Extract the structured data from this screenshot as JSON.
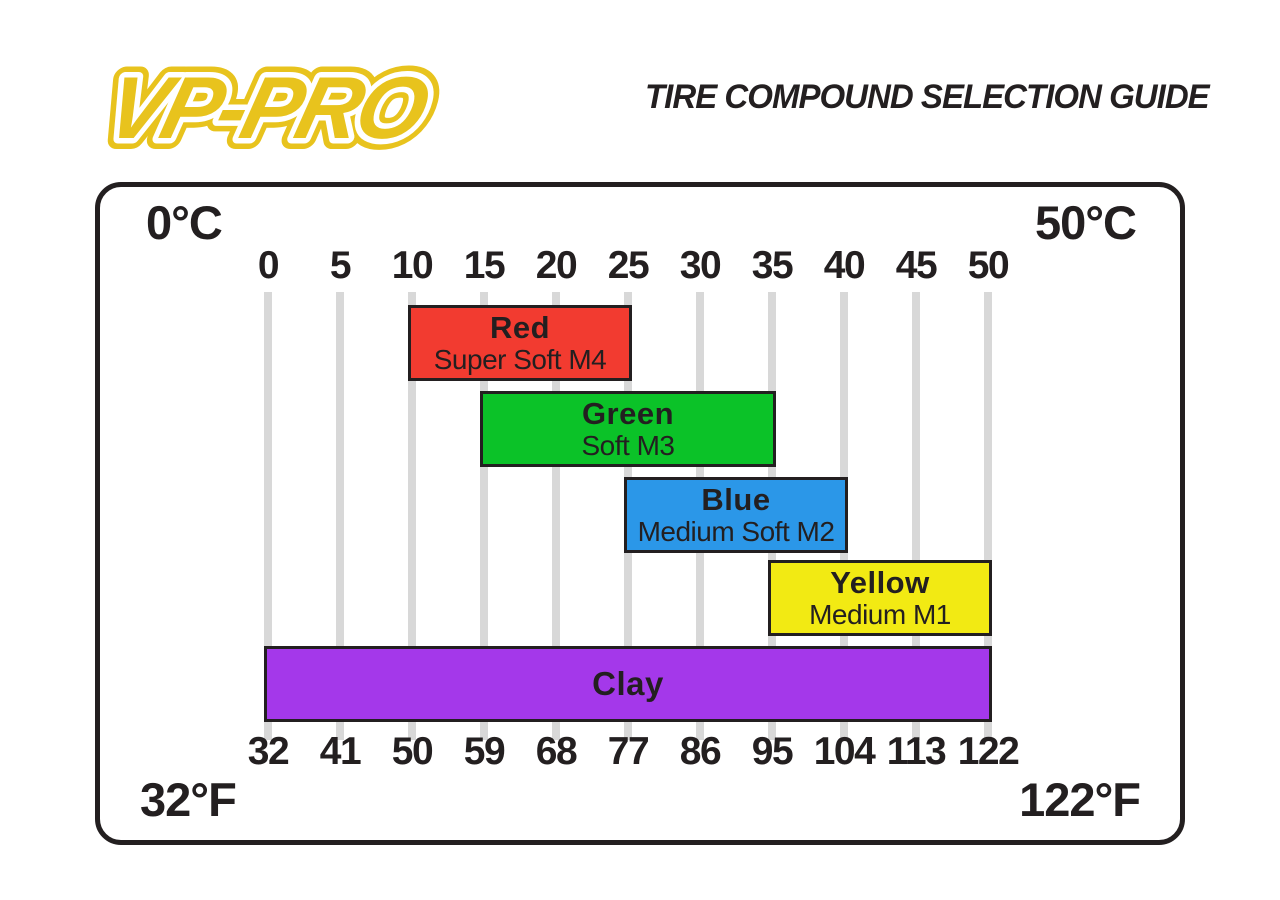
{
  "logo": {
    "text": "VP-PRO",
    "color": "#e8c31d"
  },
  "header": {
    "title": "TIRE COMPOUND SELECTION GUIDE"
  },
  "chart_data": {
    "type": "bar",
    "subtype": "horizontal-range-gantt",
    "title": "TIRE COMPOUND SELECTION GUIDE",
    "grid": true,
    "celsius_axis": {
      "corner_left": "0°C",
      "corner_right": "50°C",
      "ticks": [
        0,
        5,
        10,
        15,
        20,
        25,
        30,
        35,
        40,
        45,
        50
      ],
      "position": "top",
      "range": [
        0,
        50
      ]
    },
    "fahrenheit_axis": {
      "corner_left": "32°F",
      "corner_right": "122°F",
      "ticks": [
        32,
        41,
        50,
        59,
        68,
        77,
        86,
        95,
        104,
        113,
        122
      ],
      "position": "bottom",
      "range": [
        32,
        122
      ]
    },
    "series": [
      {
        "name": "Red",
        "subtitle": "Super Soft M4",
        "range_celsius": [
          10,
          25
        ],
        "color": "#f23b30"
      },
      {
        "name": "Green",
        "subtitle": "Soft M3",
        "range_celsius": [
          15,
          35
        ],
        "color": "#0bc228"
      },
      {
        "name": "Blue",
        "subtitle": "Medium Soft M2",
        "range_celsius": [
          25,
          40
        ],
        "color": "#2b97e8"
      },
      {
        "name": "Yellow",
        "subtitle": "Medium M1",
        "range_celsius": [
          35,
          50
        ],
        "color": "#f2ea13"
      },
      {
        "name": "Clay",
        "subtitle": "",
        "range_celsius": [
          0,
          50
        ],
        "color": "#a438ea"
      }
    ],
    "gridline_color": "#d8d8d8",
    "frame_color": "#231f20"
  }
}
